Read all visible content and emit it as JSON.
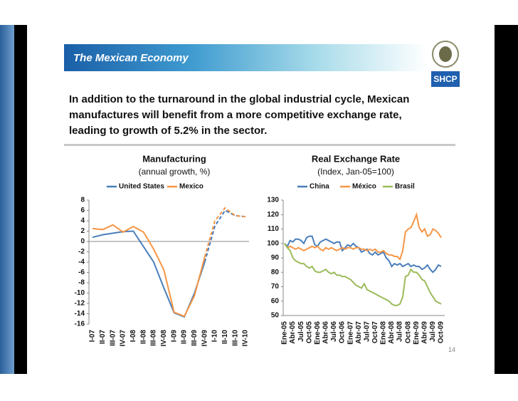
{
  "header": {
    "title": "The Mexican Economy",
    "logo": "SHCP"
  },
  "body": {
    "lines": [
      "In addition to the turnaround in the global industrial cycle, Mexican",
      "manufactures will benefit from a more competitive exchange rate,",
      "leading to growth of 5.2% in the sector."
    ]
  },
  "page_number": "14",
  "chart_data": [
    {
      "type": "line",
      "title": "Manufacturing",
      "subtitle": "(annual growth, %)",
      "categories": [
        "I-07",
        "II-07",
        "III-07",
        "IV-07",
        "I-08",
        "II-08",
        "III-08",
        "IV-08",
        "I-09",
        "II-09",
        "III-09",
        "IV-09",
        "I-10",
        "II-10",
        "III-10",
        "IV-10"
      ],
      "series": [
        {
          "name": "United States",
          "color": "#4a7ebb",
          "values": [
            0.8,
            1.3,
            1.6,
            1.9,
            2.0,
            -1.0,
            -4.0,
            -9.0,
            -13.8,
            -14.6,
            -10.0,
            -4.0,
            3.0,
            6.0,
            5.0,
            4.8
          ]
        },
        {
          "name": "Mexico",
          "color": "#f79646",
          "values": [
            2.5,
            2.3,
            3.2,
            1.8,
            2.9,
            1.8,
            -1.5,
            -5.5,
            -13.7,
            -14.5,
            -10.5,
            -3.0,
            4.0,
            6.5,
            5.0,
            4.8
          ]
        }
      ],
      "forecast_start": 11,
      "ylim": [
        -16,
        8
      ],
      "yticks": [
        -16,
        -14,
        -12,
        -10,
        -8,
        -6,
        -4,
        -2,
        0,
        2,
        4,
        6,
        8
      ]
    },
    {
      "type": "line",
      "title": "Real Exchange Rate",
      "subtitle": "(Index, Jan-05=100)",
      "categories": [
        "Ene-05",
        null,
        null,
        "Abr-05",
        null,
        null,
        "Jul-05",
        null,
        null,
        "Oct-05",
        null,
        null,
        "Ene-06",
        null,
        null,
        "Abr-06",
        null,
        null,
        "Jul-06",
        null,
        null,
        "Oct-06",
        null,
        null,
        "Ene-07",
        null,
        null,
        "Abr-07",
        null,
        null,
        "Jul-07",
        null,
        null,
        "Oct-07",
        null,
        null,
        "Ene-08",
        null,
        null,
        "Abr-08",
        null,
        null,
        "Jul-08",
        null,
        null,
        "Oct-08",
        null,
        null,
        "Ene-09",
        null,
        null,
        "Abr-09",
        null,
        null,
        "Jul-09",
        null,
        null,
        "Oct-09"
      ],
      "series": [
        {
          "name": "China",
          "color": "#4a7ebb",
          "values": [
            100,
            98,
            102,
            101,
            103,
            103,
            102,
            100,
            104,
            105,
            105,
            99,
            98,
            101,
            102,
            103,
            102,
            101,
            100,
            101,
            101,
            95,
            97,
            99,
            98,
            100,
            98,
            97,
            94,
            95,
            96,
            93,
            92,
            94,
            92,
            93,
            94,
            90,
            88,
            84,
            86,
            85,
            86,
            84,
            85,
            86,
            84,
            85,
            84,
            84,
            82,
            83,
            85,
            82,
            80,
            82,
            85,
            84
          ]
        },
        {
          "name": "México",
          "color": "#f79646",
          "values": [
            100,
            97,
            98,
            97,
            96,
            97,
            96,
            95,
            96,
            97,
            98,
            97,
            98,
            96,
            95,
            97,
            96,
            97,
            96,
            95,
            96,
            97,
            96,
            97,
            97,
            96,
            97,
            97,
            96,
            96,
            95,
            96,
            95,
            96,
            94,
            94,
            95,
            93,
            92,
            92,
            91,
            91,
            89,
            95,
            108,
            110,
            111,
            115,
            120,
            111,
            108,
            110,
            105,
            106,
            110,
            109,
            107,
            104
          ]
        },
        {
          "name": "Brasil",
          "color": "#9bbb59",
          "values": [
            100,
            97,
            95,
            90,
            88,
            87,
            86,
            86,
            84,
            83,
            84,
            81,
            80,
            80,
            81,
            82,
            80,
            79,
            80,
            78,
            78,
            77,
            77,
            76,
            75,
            73,
            71,
            70,
            69,
            72,
            68,
            67,
            66,
            65,
            64,
            63,
            62,
            61,
            60,
            58,
            57,
            57,
            58,
            63,
            77,
            78,
            82,
            80,
            80,
            78,
            75,
            74,
            70,
            66,
            63,
            60,
            59,
            58
          ]
        }
      ],
      "ylim": [
        50,
        130
      ],
      "yticks": [
        50,
        60,
        70,
        80,
        90,
        100,
        110,
        120,
        130
      ]
    }
  ]
}
